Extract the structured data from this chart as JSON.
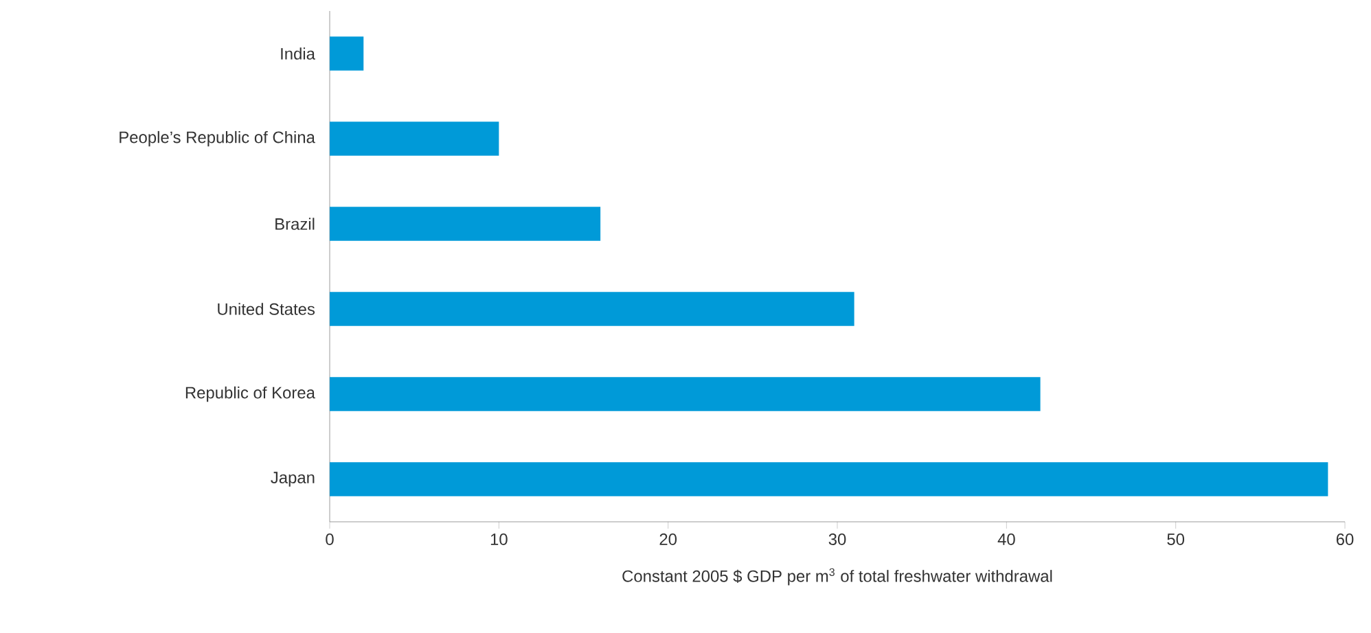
{
  "chart_data": {
    "type": "bar",
    "orientation": "horizontal",
    "categories": [
      "India",
      "People’s Republic of China",
      "Brazil",
      "United States",
      "Republic of Korea",
      "Japan"
    ],
    "values": [
      2,
      10,
      16,
      31,
      42,
      59
    ],
    "color": "#009ad8",
    "xlim": [
      0,
      60
    ],
    "xticks": [
      0,
      10,
      20,
      30,
      40,
      50,
      60
    ],
    "xlabel": "Constant 2005 $ GDP per m$^{3}$ of total freshwater withdrawal",
    "grid": false
  }
}
